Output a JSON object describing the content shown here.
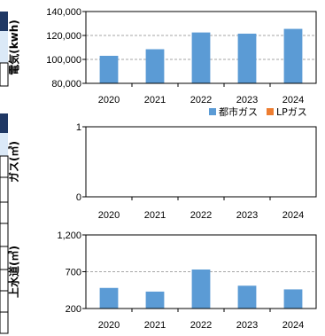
{
  "chart_data": [
    {
      "type": "bar",
      "ylabel": "電気(kwh)",
      "categories": [
        "2020",
        "2021",
        "2022",
        "2023",
        "2024"
      ],
      "y_ticks": [
        "140,000",
        "120,000",
        "100,000",
        "80,000"
      ],
      "ylim": [
        80000,
        140000
      ],
      "grid": true,
      "series": [
        {
          "values": [
            103000,
            108500,
            122500,
            121500,
            125500
          ],
          "color": "#5b9bd5"
        }
      ]
    },
    {
      "type": "bar",
      "ylabel": "ガス(㎥)",
      "categories": [
        "2020",
        "2021",
        "2022",
        "2023",
        "2024"
      ],
      "y_ticks": [
        "1",
        "0"
      ],
      "ylim": [
        0,
        1
      ],
      "grid": false,
      "legend_position": "top-right",
      "series": [
        {
          "name": "都市ガス",
          "values": [
            0,
            0,
            0,
            0,
            0
          ],
          "color": "#5b9bd5"
        },
        {
          "name": "LPガス",
          "values": [
            0,
            0,
            0,
            0,
            0
          ],
          "color": "#ed7d31"
        }
      ]
    },
    {
      "type": "bar",
      "ylabel": "上水道(㎥)",
      "categories": [
        "2020",
        "2021",
        "2022",
        "2023",
        "2024"
      ],
      "y_ticks": [
        "1,200",
        "700",
        "200"
      ],
      "ylim": [
        200,
        1200
      ],
      "grid": true,
      "series": [
        {
          "values": [
            480,
            430,
            730,
            510,
            460
          ],
          "color": "#5b9bd5"
        }
      ]
    }
  ]
}
